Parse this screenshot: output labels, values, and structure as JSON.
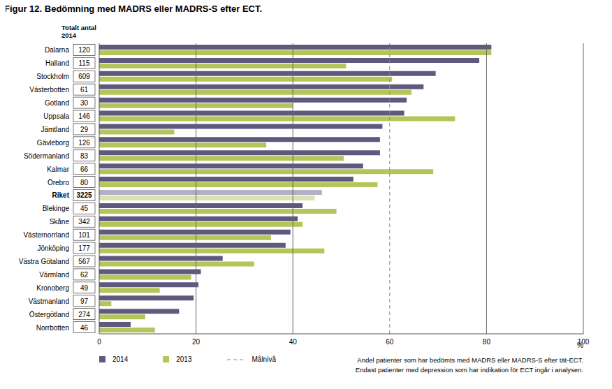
{
  "chart_data": {
    "type": "bar",
    "orientation": "horizontal",
    "title": "Figur 12. Bedömning med MADRS eller MADRS-S efter ECT.",
    "categories": [
      "Dalarna",
      "Halland",
      "Stockholm",
      "Västerbotten",
      "Gotland",
      "Uppsala",
      "Jämtland",
      "Gävleborg",
      "Södermanland",
      "Kalmar",
      "Örebro",
      "Riket",
      "Blekinge",
      "Skåne",
      "Västernorrland",
      "Jönköping",
      "Västra Götaland",
      "Värmland",
      "Kronoberg",
      "Västmanland",
      "Östergötland",
      "Norrbotten"
    ],
    "counts_label": "Totalt antal 2014",
    "counts": [
      120,
      115,
      609,
      61,
      30,
      146,
      29,
      126,
      83,
      66,
      80,
      3225,
      45,
      342,
      101,
      177,
      567,
      62,
      49,
      97,
      274,
      46
    ],
    "series": [
      {
        "name": "2014",
        "color": "#5e5a7e",
        "colors": [
          "#5e5a7e",
          "#5e5a7e",
          "#5e5a7e",
          "#5e5a7e",
          "#5e5a7e",
          "#5e5a7e",
          "#5e5a7e",
          "#5e5a7e",
          "#5e5a7e",
          "#5e5a7e",
          "#5e5a7e",
          "#b3afc4",
          "#5e5a7e",
          "#5e5a7e",
          "#5e5a7e",
          "#5e5a7e",
          "#5e5a7e",
          "#5e5a7e",
          "#5e5a7e",
          "#5e5a7e",
          "#5e5a7e",
          "#5e5a7e"
        ],
        "values": [
          81,
          78.5,
          69.5,
          67,
          63.5,
          63,
          58.5,
          58,
          58,
          54.5,
          52.5,
          46,
          42,
          41,
          39.5,
          38.5,
          25.5,
          21,
          20.5,
          19.5,
          16.5,
          6.5
        ]
      },
      {
        "name": "2013",
        "color": "#b5c55a",
        "colors": [
          "#b5c55a",
          "#b5c55a",
          "#b5c55a",
          "#b5c55a",
          "#b5c55a",
          "#b5c55a",
          "#b5c55a",
          "#b5c55a",
          "#b5c55a",
          "#b5c55a",
          "#b5c55a",
          "#dbe2b0",
          "#b5c55a",
          "#b5c55a",
          "#b5c55a",
          "#b5c55a",
          "#b5c55a",
          "#b5c55a",
          "#b5c55a",
          "#b5c55a",
          "#b5c55a",
          "#b5c55a"
        ],
        "values": [
          81,
          51,
          60.5,
          64.5,
          40,
          73.5,
          15.5,
          34.5,
          50.5,
          69,
          57.5,
          44.5,
          49,
          42,
          35.5,
          46.5,
          32,
          19,
          12.5,
          2.5,
          9.5,
          11.5
        ]
      }
    ],
    "x_label": "%",
    "xlim": [
      0,
      100
    ],
    "xticks": [
      0,
      20,
      40,
      60,
      80,
      100
    ],
    "grid": true,
    "reference_line": {
      "value": 60,
      "label": "Målnivå",
      "line_style": "dashed"
    },
    "legend": "bottom left",
    "notes": [
      "Andel patienter som har bedömts med MADRS eller MADRS-S efter tät-ECT.",
      "Endast patienter med depression som har indikation för ECT ingår i analysen."
    ]
  }
}
